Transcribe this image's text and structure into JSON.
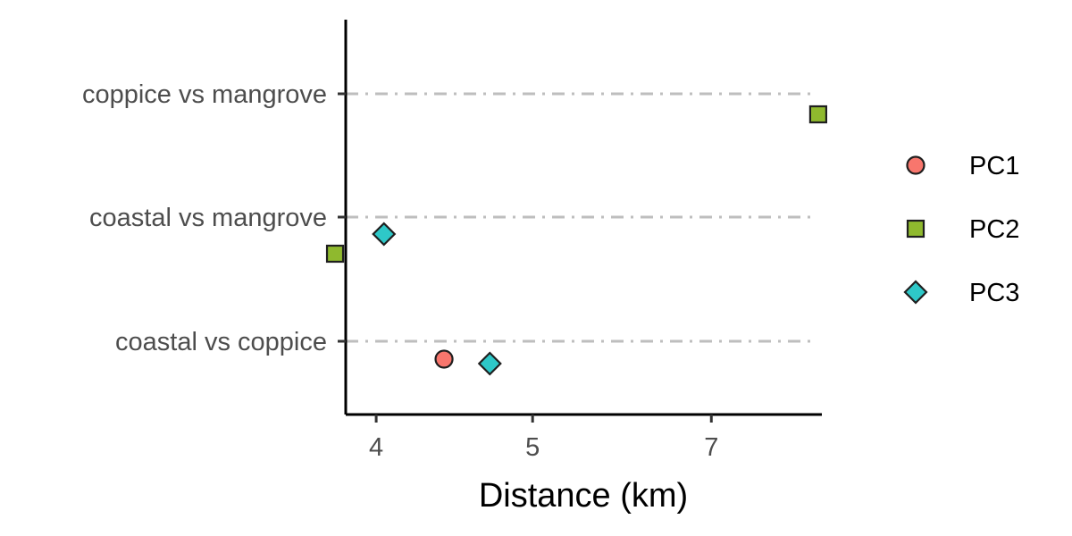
{
  "chart_data": {
    "type": "scatter",
    "xlabel": "Distance (km)",
    "ylabel": "",
    "x_scale": "reciprocal",
    "x_ticks": [
      4,
      5,
      7
    ],
    "xlim": [
      3.85,
      9.3
    ],
    "categories": [
      "coastal vs coppice",
      "coastal vs mangrove",
      "coppice vs mangrove"
    ],
    "grid": {
      "horizontal": true,
      "vertical": false,
      "style": "dash-dot"
    },
    "legend": {
      "position": "right"
    },
    "series": [
      {
        "name": "PC1",
        "shape": "circle",
        "color": "#f8766d",
        "points": [
          {
            "x": 4.38,
            "category": "coastal vs coppice"
          }
        ]
      },
      {
        "name": "PC2",
        "shape": "square",
        "color": "#8fb92e",
        "points": [
          {
            "x": 9.2,
            "category": "coppice vs mangrove"
          },
          {
            "x": 3.8,
            "category": "coastal vs mangrove"
          }
        ]
      },
      {
        "name": "PC3",
        "shape": "diamond",
        "color": "#2ec8c8",
        "points": [
          {
            "x": 4.04,
            "category": "coastal vs mangrove"
          },
          {
            "x": 4.68,
            "category": "coastal vs coppice"
          }
        ]
      }
    ]
  }
}
